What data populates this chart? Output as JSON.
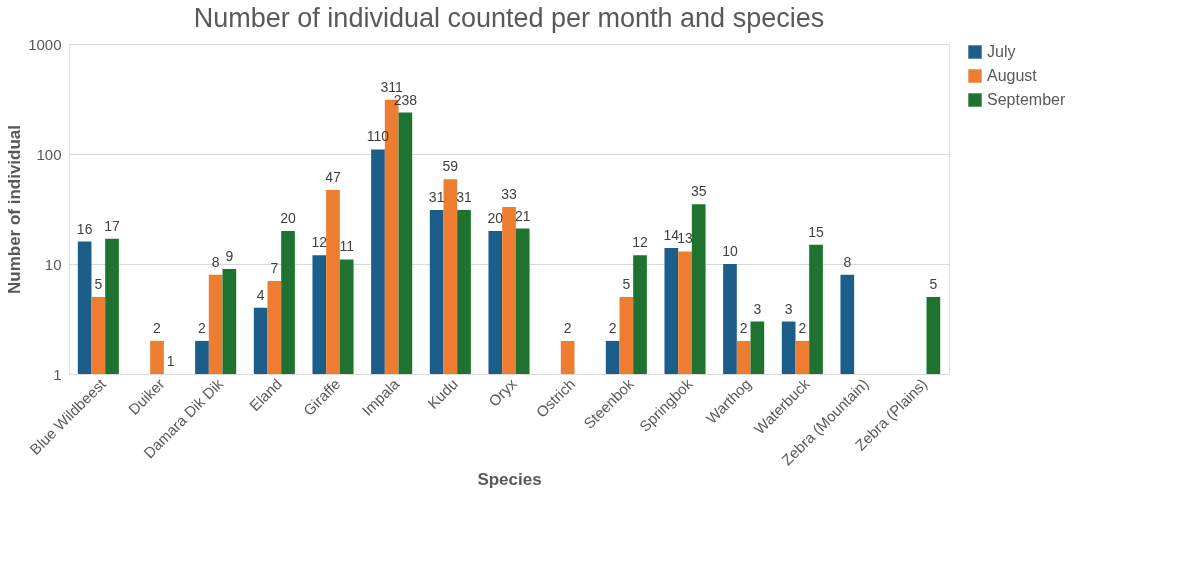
{
  "chart_data": {
    "type": "bar",
    "title": "Number of individual counted per month and species",
    "xlabel": "Species",
    "ylabel": "Number of individual",
    "categories": [
      "Blue Wildbeest",
      "Duiker",
      "Damara Dik Dik",
      "Eland",
      "Giraffe",
      "Impala",
      "Kudu",
      "Oryx",
      "Ostrich",
      "Steenbok",
      "Springbok",
      "Warthog",
      "Waterbuck",
      "Zebra (Mountain)",
      "Zebra (Plains)"
    ],
    "series": [
      {
        "name": "July",
        "color": "#1b5e8a",
        "values": [
          16,
          null,
          2,
          4,
          12,
          110,
          31,
          20,
          null,
          2,
          14,
          10,
          3,
          8,
          null
        ]
      },
      {
        "name": "August",
        "color": "#ed7d31",
        "values": [
          5,
          2,
          8,
          7,
          47,
          311,
          59,
          33,
          2,
          5,
          13,
          2,
          2,
          null,
          null
        ]
      },
      {
        "name": "September",
        "color": "#1e7331",
        "values": [
          17,
          1,
          9,
          20,
          11,
          238,
          31,
          21,
          null,
          12,
          35,
          3,
          15,
          null,
          5
        ]
      }
    ],
    "log": true,
    "ylim": [
      1,
      1000
    ],
    "yticks": [
      1,
      10,
      100,
      1000
    ],
    "grid": "y",
    "legend": "right",
    "data_labels": true
  }
}
